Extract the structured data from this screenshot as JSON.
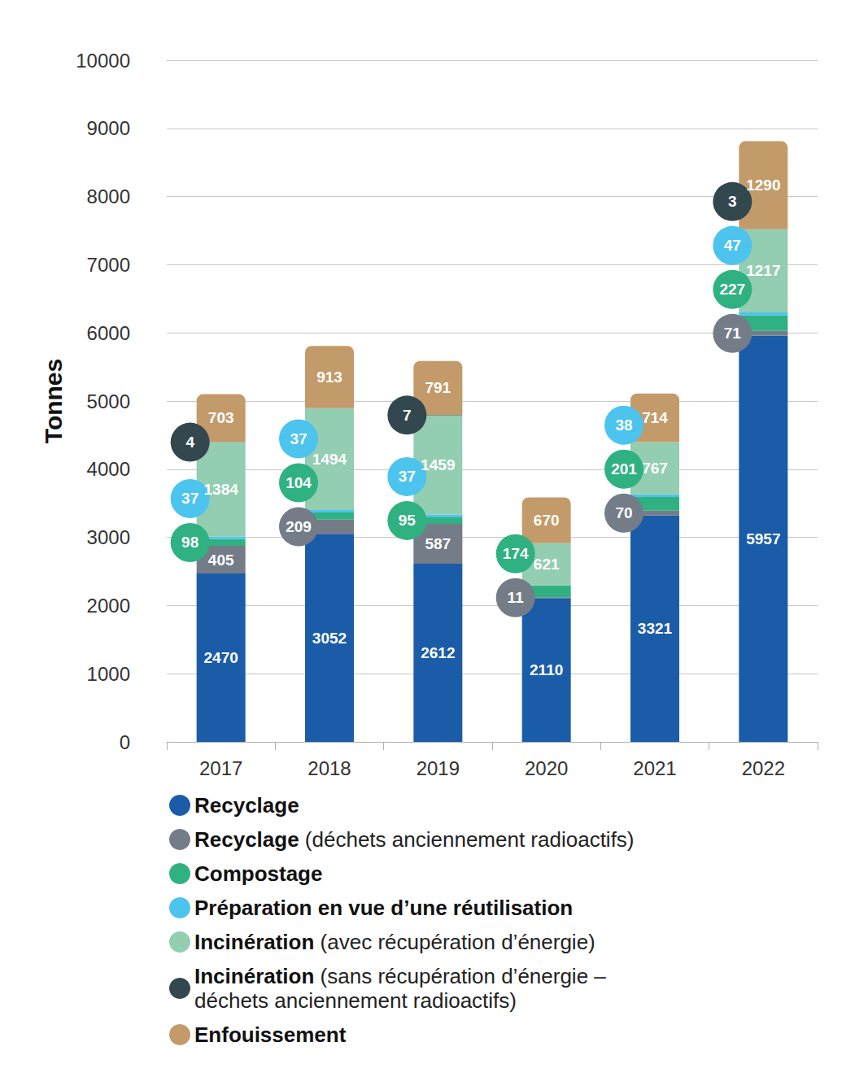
{
  "chart_data": {
    "type": "bar",
    "ylabel": "Tonnes",
    "categories": [
      "2017",
      "2018",
      "2019",
      "2020",
      "2021",
      "2022"
    ],
    "series": [
      {
        "name": "Recyclage",
        "color": "#1b5ca8",
        "values": [
          2470,
          3052,
          2612,
          2110,
          3321,
          5957
        ]
      },
      {
        "name": "Recyclage (déchets anciennement radioactifs)",
        "color": "#747c88",
        "values": [
          405,
          209,
          587,
          11,
          70,
          71
        ]
      },
      {
        "name": "Compostage",
        "color": "#30b181",
        "values": [
          98,
          104,
          95,
          174,
          201,
          227
        ]
      },
      {
        "name": "Préparation en vue d’une réutilisation",
        "color": "#4cc4ee",
        "values": [
          37,
          37,
          37,
          null,
          38,
          47
        ]
      },
      {
        "name": "Incinération (avec récupération d’énergie)",
        "color": "#93cdb2",
        "values": [
          1384,
          1494,
          1459,
          621,
          767,
          1217
        ]
      },
      {
        "name": "Incinération (sans récupération d’énergie – déchets anciennement radioactifs)",
        "color": "#33474f",
        "values": [
          4,
          null,
          7,
          null,
          null,
          3
        ]
      },
      {
        "name": "Enfouissement",
        "color": "#c39b6a",
        "values": [
          703,
          913,
          791,
          670,
          714,
          1290
        ]
      }
    ],
    "ylim": [
      0,
      10000
    ],
    "yticks": [
      0,
      1000,
      2000,
      3000,
      4000,
      5000,
      6000,
      7000,
      8000,
      9000,
      10000
    ],
    "grid": true,
    "stacked": true,
    "data_labels": true,
    "legend": "bottom"
  }
}
